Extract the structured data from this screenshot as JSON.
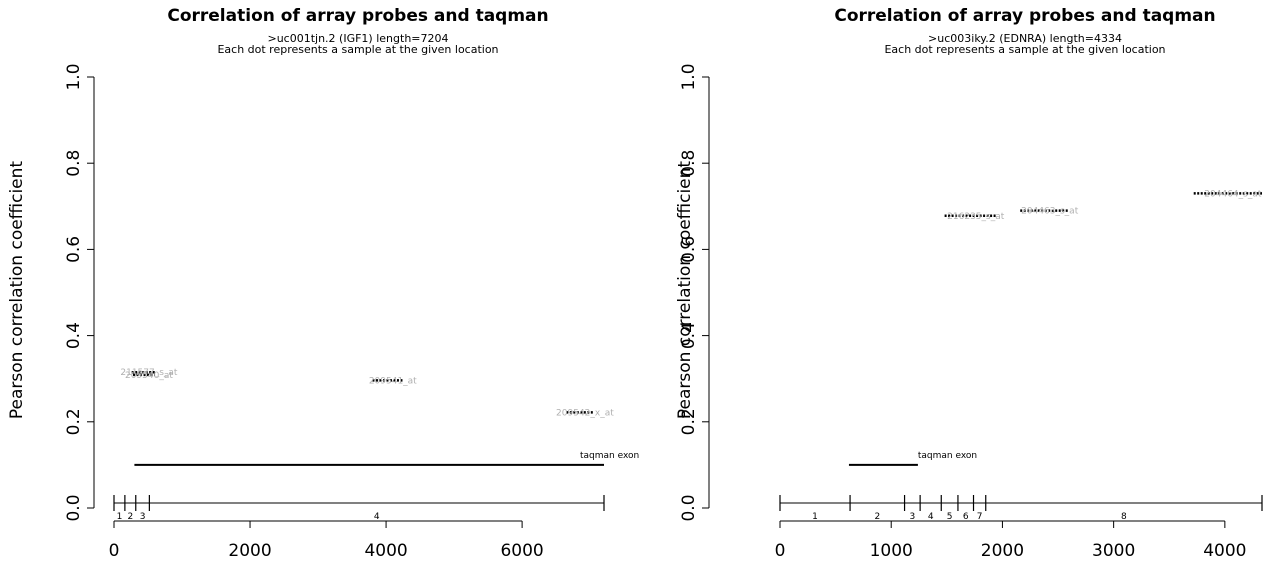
{
  "chart_data": [
    {
      "type": "scatter",
      "title": "Correlation of array probes and taqman",
      "subtitle_line1": ">uc001tjn.2 (IGF1) length=7204",
      "subtitle_line2": "Each dot represents a sample at the given location",
      "ylabel": "Pearson correlation coefficient",
      "xlabel": "",
      "xlim": [
        0,
        7204
      ],
      "ylim": [
        0,
        1
      ],
      "xticks": [
        0,
        2000,
        4000,
        6000
      ],
      "xtick_labels": [
        "0",
        "2000",
        "4000",
        "6000"
      ],
      "yticks": [
        0,
        0.2,
        0.4,
        0.6,
        0.8,
        1
      ],
      "ytick_labels": [
        "0.0",
        "0.2",
        "0.4",
        "0.6",
        "0.8",
        "1.0"
      ],
      "grid": false,
      "probes": [
        {
          "label": "211577_s_at",
          "y": 0.315,
          "x_start": 260,
          "x_end": 620
        },
        {
          "label": "209540_at",
          "y": 0.309,
          "x_start": 280,
          "x_end": 600
        },
        {
          "label": "209541_at",
          "y": 0.296,
          "x_start": 3800,
          "x_end": 4250
        },
        {
          "label": "209542_x_at",
          "y": 0.222,
          "x_start": 6650,
          "x_end": 7050
        }
      ],
      "taqman": {
        "label": "taqman exon",
        "x_start": 300,
        "x_end": 7204,
        "y": 0.1
      },
      "exons": {
        "boundaries": [
          0,
          160,
          320,
          520,
          7204
        ],
        "labels": [
          "1",
          "2",
          "3",
          "4"
        ]
      }
    },
    {
      "type": "scatter",
      "title": "Correlation of array probes and taqman",
      "subtitle_line1": ">uc003iky.2 (EDNRA) length=4334",
      "subtitle_line2": "Each dot represents a sample at the given location",
      "ylabel": "Pearson correlation coefficient",
      "xlabel": "",
      "xlim": [
        0,
        4334
      ],
      "ylim": [
        0,
        1
      ],
      "xticks": [
        0,
        1000,
        2000,
        3000,
        4000
      ],
      "xtick_labels": [
        "0",
        "1000",
        "2000",
        "3000",
        "4000"
      ],
      "yticks": [
        0,
        0.2,
        0.4,
        0.6,
        0.8,
        1
      ],
      "ytick_labels": [
        "0.0",
        "0.2",
        "0.4",
        "0.6",
        "0.8",
        "1.0"
      ],
      "grid": false,
      "probes": [
        {
          "label": "216235_s_at",
          "y": 0.678,
          "x_start": 1480,
          "x_end": 1950
        },
        {
          "label": "204463_s_at",
          "y": 0.69,
          "x_start": 2160,
          "x_end": 2600
        },
        {
          "label": "204464_s_at",
          "y": 0.73,
          "x_start": 3720,
          "x_end": 4334
        }
      ],
      "taqman": {
        "label": "taqman exon",
        "x_start": 620,
        "x_end": 1240,
        "y": 0.1
      },
      "exons": {
        "boundaries": [
          0,
          630,
          1120,
          1260,
          1450,
          1600,
          1740,
          1850,
          4334
        ],
        "labels": [
          "1",
          "2",
          "3",
          "4",
          "5",
          "6",
          "7",
          "8"
        ]
      }
    }
  ]
}
